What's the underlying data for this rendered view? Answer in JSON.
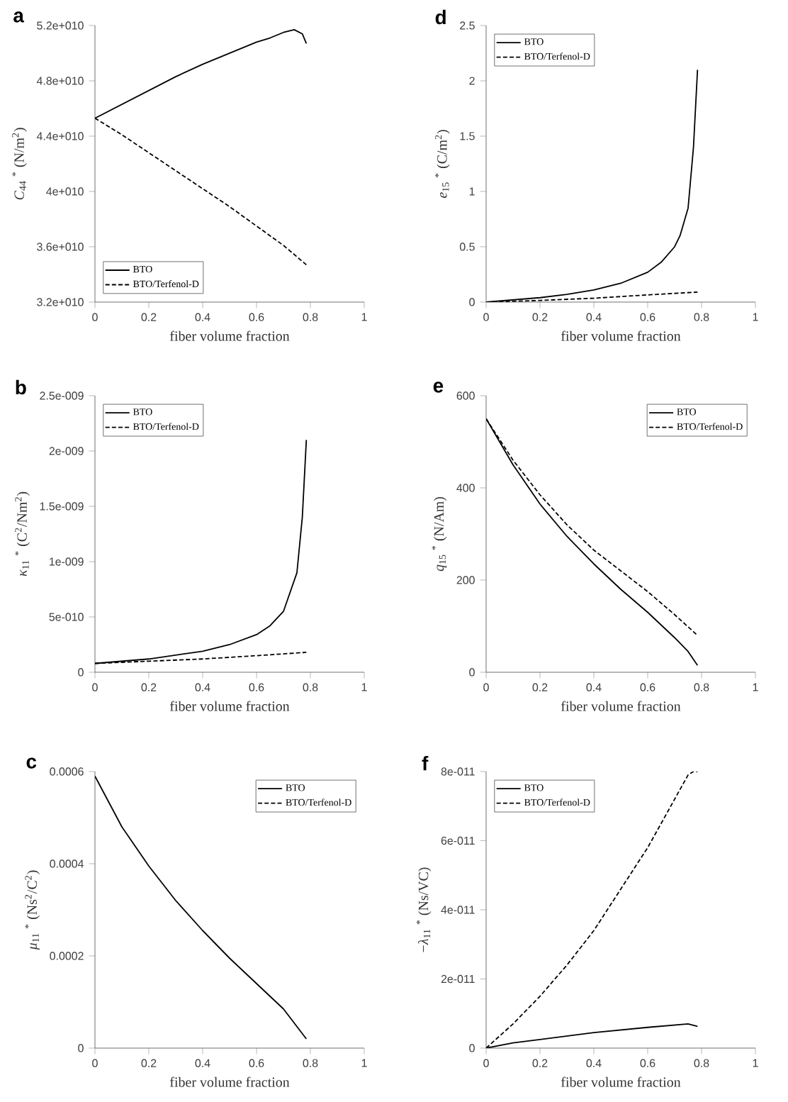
{
  "chart_data": [
    {
      "type": "line",
      "title": "a",
      "xlabel": "fiber volume fraction",
      "ylabel": "*C*$_{44}$ $^{*}$ (N/m$^{2}$)",
      "xlim": [
        0,
        1
      ],
      "xticks": [
        0,
        0.2,
        0.4,
        0.6,
        0.8,
        1
      ],
      "ylim": [
        32000000000.0,
        52000000000.0
      ],
      "yticks": [
        {
          "value": 32000000000.0,
          "label": "3.2e+010"
        },
        {
          "value": 36000000000.0,
          "label": "3.6e+010"
        },
        {
          "value": 40000000000.0,
          "label": "4e+010"
        },
        {
          "value": 44000000000.0,
          "label": "4.4e+010"
        },
        {
          "value": 48000000000.0,
          "label": "4.8e+010"
        },
        {
          "value": 52000000000.0,
          "label": "5.2e+010"
        }
      ],
      "legend": "bottom left",
      "series": [
        {
          "name": "BTO",
          "color": "#000000",
          "line_style": "solid",
          "x": [
            0,
            0.1,
            0.2,
            0.3,
            0.4,
            0.5,
            0.6,
            0.65,
            0.7,
            0.74,
            0.77,
            0.785
          ],
          "values": [
            45300000000.0,
            46300000000.0,
            47300000000.0,
            48300000000.0,
            49200000000.0,
            50000000000.0,
            50800000000.0,
            51100000000.0,
            51500000000.0,
            51700000000.0,
            51400000000.0,
            50700000000.0
          ]
        },
        {
          "name": "BTO/Terfenol-D",
          "color": "#000000",
          "line_style": "dashed",
          "x": [
            0,
            0.1,
            0.2,
            0.3,
            0.4,
            0.5,
            0.6,
            0.7,
            0.785
          ],
          "values": [
            45300000000.0,
            44100000000.0,
            42800000000.0,
            41500000000.0,
            40200000000.0,
            38900000000.0,
            37500000000.0,
            36100000000.0,
            34700000000.0
          ]
        }
      ]
    },
    {
      "type": "line",
      "title": "d",
      "xlabel": "fiber volume fraction",
      "ylabel": "*e*$_{15}$ $^{*}$ (C/m$^{2}$)",
      "xlim": [
        0,
        1
      ],
      "xticks": [
        0,
        0.2,
        0.4,
        0.6,
        0.8,
        1
      ],
      "ylim": [
        0,
        2.5
      ],
      "yticks": [
        0,
        0.5,
        1,
        1.5,
        2,
        2.5
      ],
      "legend": "top left",
      "series": [
        {
          "name": "BTO",
          "color": "#000000",
          "line_style": "solid",
          "x": [
            0,
            0.1,
            0.2,
            0.3,
            0.4,
            0.5,
            0.6,
            0.65,
            0.7,
            0.72,
            0.75,
            0.77,
            0.785
          ],
          "values": [
            0,
            0.02,
            0.04,
            0.07,
            0.11,
            0.17,
            0.27,
            0.36,
            0.5,
            0.6,
            0.85,
            1.4,
            2.1
          ]
        },
        {
          "name": "BTO/Terfenol-D",
          "color": "#000000",
          "line_style": "dashed",
          "x": [
            0,
            0.2,
            0.4,
            0.6,
            0.785
          ],
          "values": [
            0,
            0.015,
            0.035,
            0.065,
            0.09
          ]
        }
      ]
    },
    {
      "type": "line",
      "title": "b",
      "xlabel": "fiber volume fraction",
      "ylabel": "*κ*$_{11}$ $^{*}$ (C$^{2}$/Nm$^{2}$)",
      "xlim": [
        0,
        1
      ],
      "xticks": [
        0,
        0.2,
        0.4,
        0.6,
        0.8,
        1
      ],
      "ylim": [
        0,
        2.5e-09
      ],
      "yticks": [
        0,
        {
          "value": 5e-10,
          "label": "5e-010"
        },
        {
          "value": 1e-09,
          "label": "1e-009"
        },
        {
          "value": 1.5e-09,
          "label": "1.5e-009"
        },
        {
          "value": 2e-09,
          "label": "2e-009"
        },
        {
          "value": 2.5e-09,
          "label": "2.5e-009"
        }
      ],
      "legend": "top left",
      "series": [
        {
          "name": "BTO",
          "color": "#000000",
          "line_style": "solid",
          "x": [
            0,
            0.2,
            0.4,
            0.5,
            0.6,
            0.65,
            0.7,
            0.75,
            0.77,
            0.785
          ],
          "values": [
            8e-11,
            1.2e-10,
            1.9e-10,
            2.5e-10,
            3.4e-10,
            4.2e-10,
            5.5e-10,
            9e-10,
            1.4e-09,
            2.1e-09
          ]
        },
        {
          "name": "BTO/Terfenol-D",
          "color": "#000000",
          "line_style": "dashed",
          "x": [
            0,
            0.2,
            0.4,
            0.6,
            0.785
          ],
          "values": [
            8e-11,
            1e-10,
            1.2e-10,
            1.5e-10,
            1.8e-10
          ]
        }
      ]
    },
    {
      "type": "line",
      "title": "e",
      "xlabel": "fiber volume fraction",
      "ylabel": "*q*$_{15}$ $^{*}$ (N/Am)",
      "xlim": [
        0,
        1
      ],
      "xticks": [
        0,
        0.2,
        0.4,
        0.6,
        0.8,
        1
      ],
      "ylim": [
        0,
        600
      ],
      "yticks": [
        0,
        200,
        400,
        600
      ],
      "legend": "top right",
      "series": [
        {
          "name": "BTO",
          "color": "#000000",
          "line_style": "solid",
          "x": [
            0,
            0.1,
            0.2,
            0.3,
            0.4,
            0.5,
            0.6,
            0.7,
            0.75,
            0.785
          ],
          "values": [
            550,
            450,
            365,
            295,
            235,
            180,
            130,
            75,
            45,
            15
          ]
        },
        {
          "name": "BTO/Terfenol-D",
          "color": "#000000",
          "line_style": "dashed",
          "x": [
            0,
            0.1,
            0.2,
            0.3,
            0.4,
            0.5,
            0.6,
            0.7,
            0.785
          ],
          "values": [
            550,
            460,
            385,
            320,
            265,
            220,
            175,
            125,
            80
          ]
        }
      ]
    },
    {
      "type": "line",
      "title": "c",
      "xlabel": "fiber volume fraction",
      "ylabel": "*μ*$_{11}$ $^{*}$ (Ns$^{2}$/C$^{2}$)",
      "xlim": [
        0,
        1
      ],
      "xticks": [
        0,
        0.2,
        0.4,
        0.6,
        0.8,
        1
      ],
      "ylim": [
        0,
        0.0006
      ],
      "yticks": [
        0,
        0.0002,
        0.0004,
        0.0006
      ],
      "legend": "top right",
      "series": [
        {
          "name": "BTO",
          "color": "#000000",
          "line_style": "solid",
          "x": [
            0,
            0.1,
            0.2,
            0.3,
            0.4,
            0.5,
            0.6,
            0.7,
            0.785
          ],
          "values": [
            0.00059,
            0.00048,
            0.000395,
            0.00032,
            0.000255,
            0.000195,
            0.00014,
            8.5e-05,
            2e-05
          ]
        },
        {
          "name": "BTO/Terfenol-D",
          "color": "#000000",
          "line_style": "dashed"
        }
      ]
    },
    {
      "type": "line",
      "title": "f",
      "xlabel": "fiber volume fraction",
      "ylabel": "−*λ*$_{11}$ $^{*}$ (Ns/VC)",
      "xlim": [
        0,
        1
      ],
      "xticks": [
        0,
        0.2,
        0.4,
        0.6,
        0.8,
        1
      ],
      "ylim": [
        0,
        8e-11
      ],
      "yticks": [
        0,
        {
          "value": 2e-11,
          "label": "2e-011"
        },
        {
          "value": 4e-11,
          "label": "4e-011"
        },
        {
          "value": 6e-11,
          "label": "6e-011"
        },
        {
          "value": 8e-11,
          "label": "8e-011"
        }
      ],
      "legend": "top left",
      "series": [
        {
          "name": "BTO",
          "color": "#000000",
          "line_style": "solid",
          "x": [
            0,
            0.1,
            0.2,
            0.4,
            0.6,
            0.75,
            0.785
          ],
          "values": [
            0,
            1.5e-12,
            2.5e-12,
            4.5e-12,
            6e-12,
            7e-12,
            6.3e-12
          ]
        },
        {
          "name": "BTO/Terfenol-D",
          "color": "#000000",
          "line_style": "dashed",
          "x": [
            0,
            0.1,
            0.2,
            0.3,
            0.4,
            0.5,
            0.6,
            0.7,
            0.75,
            0.77,
            0.785
          ],
          "values": [
            0,
            7e-12,
            1.5e-11,
            2.4e-11,
            3.4e-11,
            4.6e-11,
            5.8e-11,
            7.2e-11,
            7.9e-11,
            8e-11,
            8e-11
          ]
        }
      ]
    }
  ]
}
